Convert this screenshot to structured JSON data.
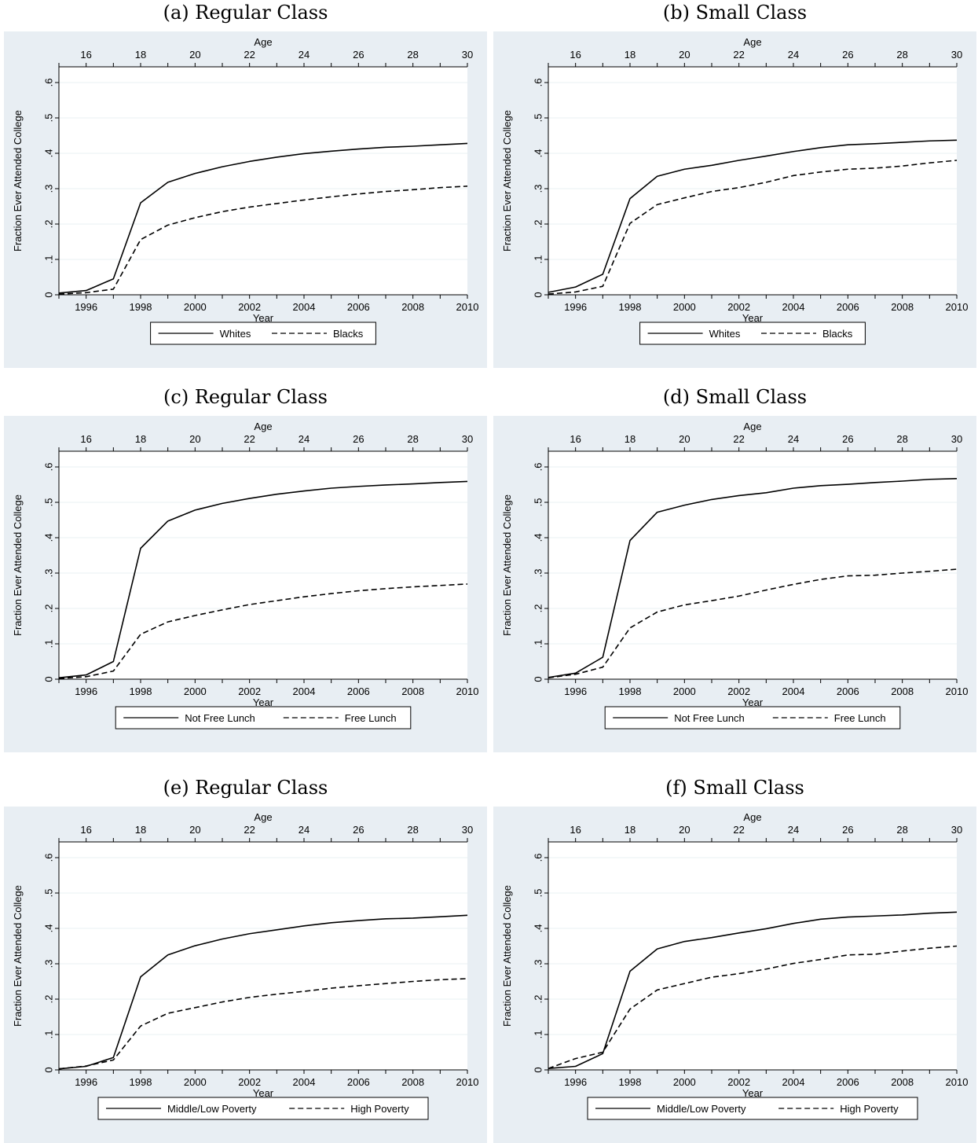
{
  "chart_data": [
    {
      "panel": "(a) Regular Class",
      "type": "line",
      "xlabel": "Year",
      "x2label": "Age",
      "ylabel": "Fraction Ever Attended College",
      "xlim": [
        1995,
        2010
      ],
      "ylim": [
        0,
        0.6
      ],
      "x_ticks": [
        "1996",
        "1998",
        "2000",
        "2002",
        "2004",
        "2006",
        "2008",
        "2010"
      ],
      "age_ticks": [
        "16",
        "18",
        "20",
        "22",
        "24",
        "26",
        "28",
        "30"
      ],
      "y_ticks": [
        "0",
        ".1",
        ".2",
        ".3",
        ".4",
        ".5",
        ".6"
      ],
      "x": [
        1995,
        1996,
        1997,
        1998,
        1999,
        2000,
        2001,
        2002,
        2003,
        2004,
        2005,
        2006,
        2007,
        2008,
        2009,
        2010
      ],
      "series": [
        {
          "name": "Whites",
          "style": "solid",
          "values": [
            0.005,
            0.012,
            0.045,
            0.26,
            0.318,
            0.343,
            0.362,
            0.377,
            0.389,
            0.399,
            0.406,
            0.412,
            0.417,
            0.42,
            0.424,
            0.428
          ]
        },
        {
          "name": "Blacks",
          "style": "dashed",
          "values": [
            0.002,
            0.006,
            0.016,
            0.156,
            0.197,
            0.218,
            0.235,
            0.248,
            0.258,
            0.268,
            0.277,
            0.285,
            0.292,
            0.297,
            0.303,
            0.307
          ]
        }
      ],
      "legend_position": "bottom"
    },
    {
      "panel": "(b) Small Class",
      "type": "line",
      "xlabel": "Year",
      "x2label": "Age",
      "ylabel": "Fraction Ever Attended College",
      "xlim": [
        1995,
        2010
      ],
      "ylim": [
        0,
        0.6
      ],
      "x_ticks": [
        "1996",
        "1998",
        "2000",
        "2002",
        "2004",
        "2006",
        "2008",
        "2010"
      ],
      "age_ticks": [
        "16",
        "18",
        "20",
        "22",
        "24",
        "26",
        "28",
        "30"
      ],
      "y_ticks": [
        "0",
        ".1",
        ".2",
        ".3",
        ".4",
        ".5",
        ".6"
      ],
      "x": [
        1995,
        1996,
        1997,
        1998,
        1999,
        2000,
        2001,
        2002,
        2003,
        2004,
        2005,
        2006,
        2007,
        2008,
        2009,
        2010
      ],
      "series": [
        {
          "name": "Whites",
          "style": "solid",
          "values": [
            0.007,
            0.022,
            0.058,
            0.272,
            0.335,
            0.355,
            0.366,
            0.38,
            0.392,
            0.405,
            0.416,
            0.424,
            0.427,
            0.431,
            0.435,
            0.437
          ]
        },
        {
          "name": "Blacks",
          "style": "dashed",
          "values": [
            0.002,
            0.008,
            0.024,
            0.202,
            0.255,
            0.274,
            0.292,
            0.303,
            0.318,
            0.337,
            0.347,
            0.355,
            0.358,
            0.364,
            0.373,
            0.38
          ]
        }
      ],
      "legend_position": "bottom"
    },
    {
      "panel": "(c) Regular Class",
      "type": "line",
      "xlabel": "Year",
      "x2label": "Age",
      "ylabel": "Fraction Ever Attended College",
      "xlim": [
        1995,
        2010
      ],
      "ylim": [
        0,
        0.6
      ],
      "x_ticks": [
        "1996",
        "1998",
        "2000",
        "2002",
        "2004",
        "2006",
        "2008",
        "2010"
      ],
      "age_ticks": [
        "16",
        "18",
        "20",
        "22",
        "24",
        "26",
        "28",
        "30"
      ],
      "y_ticks": [
        "0",
        ".1",
        ".2",
        ".3",
        ".4",
        ".5",
        ".6"
      ],
      "x": [
        1995,
        1996,
        1997,
        1998,
        1999,
        2000,
        2001,
        2002,
        2003,
        2004,
        2005,
        2006,
        2007,
        2008,
        2009,
        2010
      ],
      "series": [
        {
          "name": "Not Free Lunch",
          "style": "solid",
          "values": [
            0.004,
            0.012,
            0.05,
            0.37,
            0.447,
            0.478,
            0.497,
            0.511,
            0.523,
            0.532,
            0.54,
            0.545,
            0.549,
            0.552,
            0.556,
            0.559
          ]
        },
        {
          "name": "Free Lunch",
          "style": "dashed",
          "values": [
            0.002,
            0.007,
            0.023,
            0.127,
            0.162,
            0.18,
            0.196,
            0.211,
            0.222,
            0.233,
            0.242,
            0.25,
            0.256,
            0.261,
            0.265,
            0.269
          ]
        }
      ],
      "legend_position": "bottom"
    },
    {
      "panel": "(d) Small Class",
      "type": "line",
      "xlabel": "Year",
      "x2label": "Age",
      "ylabel": "Fraction Ever Attended College",
      "xlim": [
        1995,
        2010
      ],
      "ylim": [
        0,
        0.6
      ],
      "x_ticks": [
        "1996",
        "1998",
        "2000",
        "2002",
        "2004",
        "2006",
        "2008",
        "2010"
      ],
      "age_ticks": [
        "16",
        "18",
        "20",
        "22",
        "24",
        "26",
        "28",
        "30"
      ],
      "y_ticks": [
        "0",
        ".1",
        ".2",
        ".3",
        ".4",
        ".5",
        ".6"
      ],
      "x": [
        1995,
        1996,
        1997,
        1998,
        1999,
        2000,
        2001,
        2002,
        2003,
        2004,
        2005,
        2006,
        2007,
        2008,
        2009,
        2010
      ],
      "series": [
        {
          "name": "Not Free Lunch",
          "style": "solid",
          "values": [
            0.005,
            0.017,
            0.062,
            0.392,
            0.472,
            0.492,
            0.508,
            0.519,
            0.527,
            0.54,
            0.547,
            0.551,
            0.556,
            0.56,
            0.565,
            0.567
          ]
        },
        {
          "name": "Free Lunch",
          "style": "dashed",
          "values": [
            0.004,
            0.014,
            0.034,
            0.145,
            0.19,
            0.21,
            0.222,
            0.235,
            0.252,
            0.268,
            0.282,
            0.292,
            0.294,
            0.3,
            0.305,
            0.311
          ]
        }
      ],
      "legend_position": "bottom"
    },
    {
      "panel": "(e) Regular Class",
      "type": "line",
      "xlabel": "Year",
      "x2label": "Age",
      "ylabel": "Fraction Ever Attended College",
      "xlim": [
        1995,
        2010
      ],
      "ylim": [
        0,
        0.6
      ],
      "x_ticks": [
        "1996",
        "1998",
        "2000",
        "2002",
        "2004",
        "2006",
        "2008",
        "2010"
      ],
      "age_ticks": [
        "16",
        "18",
        "20",
        "22",
        "24",
        "26",
        "28",
        "30"
      ],
      "y_ticks": [
        "0",
        ".1",
        ".2",
        ".3",
        ".4",
        ".5",
        ".6"
      ],
      "x": [
        1995,
        1996,
        1997,
        1998,
        1999,
        2000,
        2001,
        2002,
        2003,
        2004,
        2005,
        2006,
        2007,
        2008,
        2009,
        2010
      ],
      "series": [
        {
          "name": "Middle/Low Poverty",
          "style": "solid",
          "values": [
            0.003,
            0.01,
            0.035,
            0.263,
            0.325,
            0.351,
            0.37,
            0.385,
            0.396,
            0.407,
            0.416,
            0.422,
            0.427,
            0.429,
            0.433,
            0.437
          ]
        },
        {
          "name": "High Poverty",
          "style": "dashed",
          "values": [
            0.003,
            0.011,
            0.028,
            0.124,
            0.16,
            0.176,
            0.192,
            0.205,
            0.214,
            0.222,
            0.231,
            0.238,
            0.244,
            0.25,
            0.255,
            0.258
          ]
        }
      ],
      "legend_position": "bottom"
    },
    {
      "panel": "(f) Small Class",
      "type": "line",
      "xlabel": "Year",
      "x2label": "Age",
      "ylabel": "Fraction Ever Attended College",
      "xlim": [
        1995,
        2010
      ],
      "ylim": [
        0,
        0.6
      ],
      "x_ticks": [
        "1996",
        "1998",
        "2000",
        "2002",
        "2004",
        "2006",
        "2008",
        "2010"
      ],
      "age_ticks": [
        "16",
        "18",
        "20",
        "22",
        "24",
        "26",
        "28",
        "30"
      ],
      "y_ticks": [
        "0",
        ".1",
        ".2",
        ".3",
        ".4",
        ".5",
        ".6"
      ],
      "x": [
        1995,
        1996,
        1997,
        1998,
        1999,
        2000,
        2001,
        2002,
        2003,
        2004,
        2005,
        2006,
        2007,
        2008,
        2009,
        2010
      ],
      "series": [
        {
          "name": "Middle/Low Poverty",
          "style": "solid",
          "values": [
            0.004,
            0.01,
            0.046,
            0.279,
            0.342,
            0.363,
            0.374,
            0.387,
            0.399,
            0.414,
            0.426,
            0.432,
            0.435,
            0.438,
            0.443,
            0.446
          ]
        },
        {
          "name": "High Poverty",
          "style": "dashed",
          "values": [
            0.004,
            0.032,
            0.05,
            0.172,
            0.226,
            0.244,
            0.262,
            0.272,
            0.285,
            0.301,
            0.312,
            0.325,
            0.327,
            0.336,
            0.344,
            0.35
          ]
        }
      ],
      "legend_position": "bottom"
    }
  ]
}
